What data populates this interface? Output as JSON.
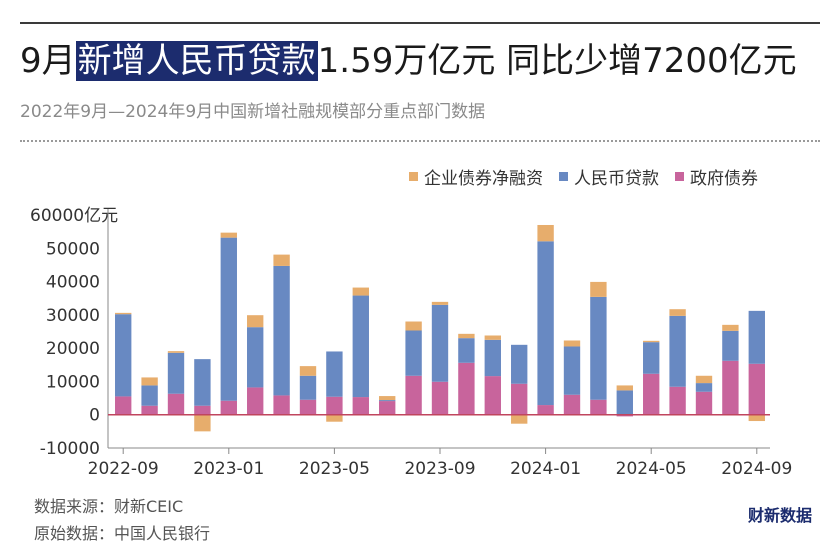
{
  "header": {
    "title_prefix": "9月",
    "title_highlight": "新增人民币贷款",
    "title_suffix": "1.59万亿元 同比少增7200亿元",
    "subtitle": "2022年9月—2024年9月中国新增社融规模部分重点部门数据"
  },
  "footer": {
    "source": "数据来源：财新CEIC",
    "original": "原始数据：中国人民银行",
    "logo": "财新数据"
  },
  "colors": {
    "corporate_bonds": "#e7ad6c",
    "rmb_loans": "#6889c2",
    "gov_bonds": "#c8649c",
    "baseline": "#c0455e",
    "axis": "#888888",
    "tick_text": "#333333"
  },
  "chart_data": {
    "type": "bar",
    "stacked": true,
    "title": "",
    "xlabel": "",
    "ylabel": "亿元",
    "ylim": [
      -10000,
      60000
    ],
    "y_ticks": [
      -10000,
      0,
      10000,
      20000,
      30000,
      40000,
      50000,
      60000
    ],
    "y_tick_labels": [
      "-10000",
      "0",
      "10000",
      "20000",
      "30000",
      "40000",
      "50000",
      "60000亿元"
    ],
    "legend": {
      "placement": "top-right",
      "order": [
        "企业债券净融资",
        "人民币贷款",
        "政府债券"
      ]
    },
    "x_tick_labels": [
      {
        "index": 0,
        "label": "2022-09"
      },
      {
        "index": 4,
        "label": "2023-01"
      },
      {
        "index": 8,
        "label": "2023-05"
      },
      {
        "index": 12,
        "label": "2023-09"
      },
      {
        "index": 16,
        "label": "2024-01"
      },
      {
        "index": 20,
        "label": "2024-05"
      },
      {
        "index": 24,
        "label": "2024-09"
      }
    ],
    "categories": [
      "2022-09",
      "2022-10",
      "2022-11",
      "2022-12",
      "2023-01",
      "2023-02",
      "2023-03",
      "2023-04",
      "2023-05",
      "2023-06",
      "2023-07",
      "2023-08",
      "2023-09",
      "2023-10",
      "2023-11",
      "2023-12",
      "2024-01",
      "2024-02",
      "2024-03",
      "2024-04",
      "2024-05",
      "2024-06",
      "2024-07",
      "2024-08",
      "2024-09"
    ],
    "series": [
      {
        "name": "政府债券",
        "color_key": "gov_bonds",
        "values": [
          5500,
          2700,
          6300,
          2700,
          4200,
          8200,
          5800,
          4500,
          5400,
          5300,
          4100,
          11700,
          9900,
          15600,
          11600,
          9300,
          2900,
          6000,
          4500,
          -500,
          12300,
          8400,
          6900,
          16200,
          15300
        ]
      },
      {
        "name": "人民币贷款",
        "color_key": "rmb_loans",
        "values": [
          24700,
          6100,
          12300,
          14000,
          49000,
          18100,
          38900,
          7200,
          13600,
          30500,
          300,
          13600,
          23100,
          7400,
          10900,
          11700,
          49200,
          14500,
          30900,
          7300,
          9500,
          21300,
          2600,
          9000,
          15900
        ]
      },
      {
        "name": "企业债券净融资",
        "color_key": "corporate_bonds",
        "values": [
          400,
          2400,
          500,
          -5000,
          1500,
          3600,
          3400,
          2900,
          -2100,
          2400,
          1200,
          2700,
          900,
          1300,
          1300,
          -2700,
          4900,
          1800,
          4500,
          1500,
          400,
          2000,
          2200,
          1800,
          -1900
        ]
      }
    ]
  }
}
